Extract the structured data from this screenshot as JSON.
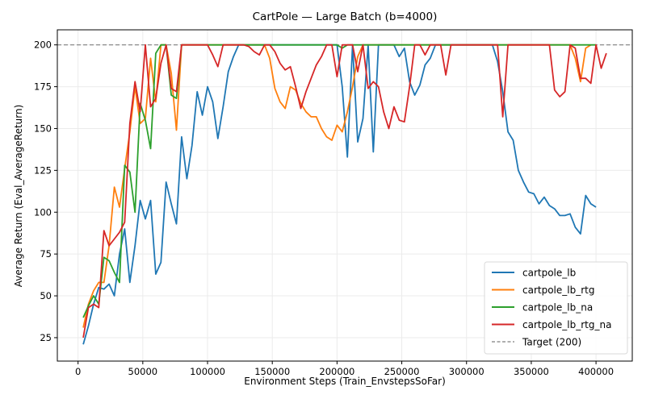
{
  "chart_data": {
    "type": "line",
    "title": "CartPole — Large Batch (b=4000)",
    "xlabel": "Environment Steps (Train_EnvstepsSoFar)",
    "ylabel": "Average Return (Eval_AverageReturn)",
    "xlim": [
      -16000,
      428000
    ],
    "ylim": [
      11,
      209
    ],
    "xticks": [
      0,
      50000,
      100000,
      150000,
      200000,
      250000,
      300000,
      350000,
      400000
    ],
    "xtick_labels": [
      "0",
      "50000",
      "100000",
      "150000",
      "200000",
      "250000",
      "300000",
      "350000",
      "400000"
    ],
    "yticks": [
      25,
      50,
      75,
      100,
      125,
      150,
      175,
      200
    ],
    "ytick_labels": [
      "25",
      "50",
      "75",
      "100",
      "125",
      "150",
      "175",
      "200"
    ],
    "grid": true,
    "legend_position": "lower right",
    "reference_line": {
      "label": "Target (200)",
      "y": 200,
      "color": "#7f7f7f",
      "style": "dashed"
    },
    "series": [
      {
        "name": "cartpole_lb",
        "color": "#1f77b4",
        "points": [
          [
            4000,
            21
          ],
          [
            8000,
            32
          ],
          [
            12000,
            45
          ],
          [
            16000,
            55
          ],
          [
            20000,
            54
          ],
          [
            24000,
            57
          ],
          [
            28000,
            50
          ],
          [
            32000,
            75
          ],
          [
            36000,
            90
          ],
          [
            40000,
            58
          ],
          [
            44000,
            80
          ],
          [
            48000,
            107
          ],
          [
            52000,
            96
          ],
          [
            56000,
            107
          ],
          [
            60000,
            63
          ],
          [
            64000,
            70
          ],
          [
            68000,
            118
          ],
          [
            72000,
            105
          ],
          [
            76000,
            93
          ],
          [
            80000,
            145
          ],
          [
            84000,
            120
          ],
          [
            88000,
            140
          ],
          [
            92000,
            172
          ],
          [
            96000,
            158
          ],
          [
            100000,
            175
          ],
          [
            104000,
            166
          ],
          [
            108000,
            144
          ],
          [
            112000,
            163
          ],
          [
            116000,
            184
          ],
          [
            120000,
            193
          ],
          [
            124000,
            200
          ],
          [
            128000,
            200
          ],
          [
            160000,
            200
          ],
          [
            200000,
            200
          ],
          [
            204000,
            175
          ],
          [
            208000,
            133
          ],
          [
            212000,
            200
          ],
          [
            216000,
            142
          ],
          [
            220000,
            156
          ],
          [
            224000,
            200
          ],
          [
            228000,
            136
          ],
          [
            232000,
            200
          ],
          [
            244000,
            200
          ],
          [
            248000,
            193
          ],
          [
            252000,
            198
          ],
          [
            256000,
            178
          ],
          [
            260000,
            170
          ],
          [
            264000,
            176
          ],
          [
            268000,
            188
          ],
          [
            272000,
            192
          ],
          [
            276000,
            200
          ],
          [
            320000,
            200
          ],
          [
            324000,
            190
          ],
          [
            328000,
            172
          ],
          [
            332000,
            148
          ],
          [
            336000,
            143
          ],
          [
            340000,
            125
          ],
          [
            344000,
            118
          ],
          [
            348000,
            112
          ],
          [
            352000,
            111
          ],
          [
            356000,
            105
          ],
          [
            360000,
            109
          ],
          [
            364000,
            104
          ],
          [
            368000,
            102
          ],
          [
            372000,
            98
          ],
          [
            376000,
            98
          ],
          [
            380000,
            99
          ],
          [
            384000,
            91
          ],
          [
            388000,
            87
          ],
          [
            392000,
            110
          ],
          [
            396000,
            105
          ],
          [
            400000,
            103
          ]
        ]
      },
      {
        "name": "cartpole_lb_rtg",
        "color": "#ff7f0e",
        "points": [
          [
            4000,
            31
          ],
          [
            8000,
            45
          ],
          [
            12000,
            53
          ],
          [
            16000,
            58
          ],
          [
            20000,
            58
          ],
          [
            24000,
            80
          ],
          [
            28000,
            115
          ],
          [
            32000,
            103
          ],
          [
            36000,
            126
          ],
          [
            40000,
            148
          ],
          [
            44000,
            175
          ],
          [
            48000,
            153
          ],
          [
            52000,
            156
          ],
          [
            56000,
            192
          ],
          [
            60000,
            166
          ],
          [
            64000,
            200
          ],
          [
            68000,
            200
          ],
          [
            72000,
            183
          ],
          [
            76000,
            149
          ],
          [
            80000,
            200
          ],
          [
            120000,
            200
          ],
          [
            144000,
            200
          ],
          [
            148000,
            192
          ],
          [
            152000,
            174
          ],
          [
            156000,
            166
          ],
          [
            160000,
            162
          ],
          [
            164000,
            175
          ],
          [
            168000,
            173
          ],
          [
            172000,
            165
          ],
          [
            176000,
            160
          ],
          [
            180000,
            157
          ],
          [
            184000,
            157
          ],
          [
            188000,
            150
          ],
          [
            192000,
            145
          ],
          [
            196000,
            143
          ],
          [
            200000,
            152
          ],
          [
            204000,
            148
          ],
          [
            208000,
            160
          ],
          [
            212000,
            175
          ],
          [
            216000,
            193
          ],
          [
            220000,
            200
          ],
          [
            380000,
            200
          ],
          [
            384000,
            192
          ],
          [
            388000,
            178
          ],
          [
            392000,
            198
          ],
          [
            396000,
            200
          ]
        ]
      },
      {
        "name": "cartpole_lb_na",
        "color": "#2ca02c",
        "points": [
          [
            4000,
            37
          ],
          [
            8000,
            44
          ],
          [
            12000,
            50
          ],
          [
            16000,
            45
          ],
          [
            20000,
            73
          ],
          [
            24000,
            71
          ],
          [
            28000,
            64
          ],
          [
            32000,
            58
          ],
          [
            36000,
            128
          ],
          [
            40000,
            124
          ],
          [
            44000,
            100
          ],
          [
            48000,
            165
          ],
          [
            52000,
            155
          ],
          [
            56000,
            138
          ],
          [
            60000,
            195
          ],
          [
            64000,
            200
          ],
          [
            68000,
            200
          ],
          [
            72000,
            170
          ],
          [
            76000,
            168
          ],
          [
            80000,
            200
          ],
          [
            200000,
            200
          ],
          [
            204000,
            198
          ],
          [
            208000,
            200
          ],
          [
            400000,
            200
          ]
        ]
      },
      {
        "name": "cartpole_lb_rtg_na",
        "color": "#d62728",
        "points": [
          [
            4000,
            25
          ],
          [
            8000,
            43
          ],
          [
            12000,
            45
          ],
          [
            16000,
            43
          ],
          [
            20000,
            89
          ],
          [
            24000,
            80
          ],
          [
            28000,
            84
          ],
          [
            32000,
            88
          ],
          [
            36000,
            94
          ],
          [
            40000,
            153
          ],
          [
            44000,
            178
          ],
          [
            48000,
            160
          ],
          [
            52000,
            200
          ],
          [
            56000,
            163
          ],
          [
            60000,
            168
          ],
          [
            64000,
            189
          ],
          [
            68000,
            200
          ],
          [
            72000,
            174
          ],
          [
            76000,
            172
          ],
          [
            80000,
            200
          ],
          [
            100000,
            200
          ],
          [
            104000,
            194
          ],
          [
            108000,
            187
          ],
          [
            112000,
            200
          ],
          [
            128000,
            200
          ],
          [
            132000,
            199
          ],
          [
            136000,
            196
          ],
          [
            140000,
            194
          ],
          [
            144000,
            200
          ],
          [
            148000,
            200
          ],
          [
            152000,
            196
          ],
          [
            156000,
            189
          ],
          [
            160000,
            185
          ],
          [
            164000,
            187
          ],
          [
            168000,
            175
          ],
          [
            172000,
            162
          ],
          [
            176000,
            172
          ],
          [
            180000,
            180
          ],
          [
            184000,
            188
          ],
          [
            188000,
            193
          ],
          [
            192000,
            200
          ],
          [
            196000,
            200
          ],
          [
            200000,
            181
          ],
          [
            204000,
            200
          ],
          [
            208000,
            200
          ],
          [
            212000,
            200
          ],
          [
            216000,
            184
          ],
          [
            220000,
            200
          ],
          [
            224000,
            174
          ],
          [
            228000,
            178
          ],
          [
            232000,
            175
          ],
          [
            236000,
            160
          ],
          [
            240000,
            150
          ],
          [
            244000,
            163
          ],
          [
            248000,
            155
          ],
          [
            252000,
            154
          ],
          [
            256000,
            175
          ],
          [
            260000,
            200
          ],
          [
            264000,
            200
          ],
          [
            268000,
            194
          ],
          [
            272000,
            200
          ],
          [
            276000,
            200
          ],
          [
            280000,
            200
          ],
          [
            284000,
            182
          ],
          [
            288000,
            200
          ],
          [
            320000,
            200
          ],
          [
            324000,
            200
          ],
          [
            328000,
            157
          ],
          [
            332000,
            200
          ],
          [
            364000,
            200
          ],
          [
            368000,
            173
          ],
          [
            372000,
            169
          ],
          [
            376000,
            172
          ],
          [
            380000,
            200
          ],
          [
            384000,
            198
          ],
          [
            388000,
            180
          ],
          [
            392000,
            180
          ],
          [
            396000,
            177
          ],
          [
            400000,
            200
          ],
          [
            404000,
            186
          ],
          [
            408000,
            195
          ]
        ]
      }
    ]
  }
}
